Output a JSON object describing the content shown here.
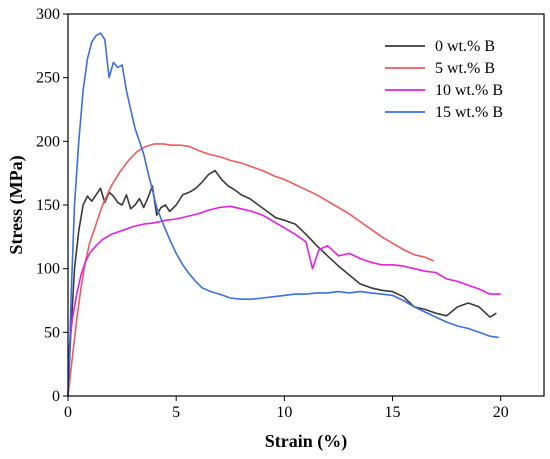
{
  "chart_data": {
    "type": "line",
    "xlabel": "Strain (%)",
    "ylabel": "Stress (MPa)",
    "xlim": [
      0,
      22
    ],
    "ylim": [
      0,
      300
    ],
    "xticks": [
      0,
      5,
      10,
      15,
      20
    ],
    "yticks": [
      0,
      50,
      100,
      150,
      200,
      250,
      300
    ],
    "grid": false,
    "legend_position": "top-right",
    "series": [
      {
        "name": "0 wt.% B",
        "color": "#3a3a3a",
        "x": [
          0,
          0.1,
          0.3,
          0.5,
          0.7,
          0.9,
          1.1,
          1.3,
          1.5,
          1.7,
          1.9,
          2.1,
          2.3,
          2.5,
          2.7,
          2.9,
          3.1,
          3.3,
          3.5,
          3.7,
          3.9,
          4.1,
          4.3,
          4.5,
          4.7,
          5.0,
          5.3,
          5.6,
          5.9,
          6.2,
          6.5,
          6.8,
          7.1,
          7.4,
          7.7,
          8.0,
          8.4,
          8.8,
          9.2,
          9.6,
          10.0,
          10.5,
          11.0,
          11.5,
          12.0,
          12.5,
          13.0,
          13.5,
          14.0,
          14.5,
          15.0,
          15.5,
          16.0,
          16.5,
          17.0,
          17.5,
          18.0,
          18.5,
          19.0,
          19.5,
          19.8
        ],
        "y": [
          0,
          40,
          100,
          130,
          150,
          157,
          153,
          158,
          163,
          152,
          160,
          157,
          152,
          150,
          158,
          147,
          150,
          155,
          148,
          156,
          165,
          142,
          148,
          150,
          145,
          150,
          158,
          160,
          163,
          168,
          174,
          177,
          170,
          165,
          162,
          158,
          155,
          150,
          145,
          140,
          138,
          135,
          127,
          118,
          110,
          102,
          95,
          88,
          85,
          83,
          82,
          78,
          70,
          68,
          65,
          63,
          70,
          73,
          70,
          62,
          65
        ]
      },
      {
        "name": "5 wt.% B",
        "color": "#f05a5a",
        "x": [
          0,
          0.2,
          0.4,
          0.6,
          0.8,
          1.0,
          1.3,
          1.6,
          2.0,
          2.4,
          2.8,
          3.2,
          3.6,
          4.0,
          4.4,
          4.8,
          5.2,
          5.6,
          6.0,
          6.5,
          7.0,
          7.5,
          8.0,
          8.5,
          9.0,
          9.5,
          10.0,
          10.5,
          11.0,
          11.5,
          12.0,
          12.5,
          13.0,
          13.5,
          14.0,
          14.5,
          15.0,
          15.5,
          16.0,
          16.5,
          16.9
        ],
        "y": [
          0,
          30,
          60,
          85,
          105,
          120,
          135,
          150,
          165,
          176,
          185,
          192,
          196,
          198,
          198,
          197,
          197,
          196,
          193,
          190,
          188,
          185,
          183,
          180,
          177,
          173,
          170,
          166,
          162,
          158,
          153,
          148,
          143,
          137,
          131,
          125,
          120,
          115,
          111,
          109,
          106
        ]
      },
      {
        "name": "10 wt.% B",
        "color": "#e61ee6",
        "x": [
          0,
          0.1,
          0.2,
          0.4,
          0.6,
          0.8,
          1.0,
          1.3,
          1.6,
          2.0,
          2.5,
          3.0,
          3.5,
          4.0,
          4.5,
          5.0,
          5.5,
          6.0,
          6.5,
          7.0,
          7.5,
          8.0,
          8.5,
          9.0,
          9.5,
          10.0,
          10.5,
          11.0,
          11.3,
          11.6,
          12.0,
          12.5,
          13.0,
          13.5,
          14.0,
          14.5,
          15.0,
          15.5,
          16.0,
          16.5,
          17.0,
          17.5,
          18.0,
          18.5,
          19.0,
          19.5,
          20.0
        ],
        "y": [
          30,
          45,
          60,
          80,
          95,
          105,
          112,
          118,
          123,
          127,
          130,
          133,
          135,
          136,
          138,
          139,
          141,
          143,
          146,
          148,
          149,
          147,
          145,
          142,
          137,
          132,
          127,
          121,
          100,
          115,
          118,
          110,
          112,
          108,
          105,
          103,
          103,
          102,
          100,
          98,
          97,
          92,
          90,
          87,
          84,
          80,
          80
        ]
      },
      {
        "name": "15 wt.% B",
        "color": "#3a6fe6",
        "x": [
          0,
          0.05,
          0.15,
          0.3,
          0.5,
          0.7,
          0.9,
          1.1,
          1.3,
          1.5,
          1.7,
          1.9,
          2.1,
          2.3,
          2.5,
          2.7,
          2.9,
          3.1,
          3.3,
          3.5,
          3.7,
          3.9,
          4.1,
          4.4,
          4.7,
          5.0,
          5.3,
          5.6,
          5.9,
          6.2,
          6.6,
          7.0,
          7.5,
          8.0,
          8.5,
          9.0,
          9.5,
          10.0,
          10.5,
          11.0,
          11.5,
          12.0,
          12.5,
          13.0,
          13.5,
          14.0,
          14.5,
          15.0,
          15.5,
          16.0,
          16.5,
          17.0,
          17.5,
          18.0,
          18.5,
          19.0,
          19.5,
          19.9
        ],
        "y": [
          0,
          20,
          80,
          150,
          200,
          240,
          265,
          278,
          283,
          285,
          280,
          250,
          262,
          258,
          260,
          240,
          225,
          210,
          200,
          190,
          175,
          162,
          148,
          135,
          123,
          112,
          103,
          96,
          90,
          85,
          82,
          80,
          77,
          76,
          76,
          77,
          78,
          79,
          80,
          80,
          81,
          81,
          82,
          81,
          82,
          81,
          80,
          79,
          75,
          70,
          66,
          62,
          58,
          55,
          53,
          50,
          47,
          46
        ]
      }
    ]
  }
}
